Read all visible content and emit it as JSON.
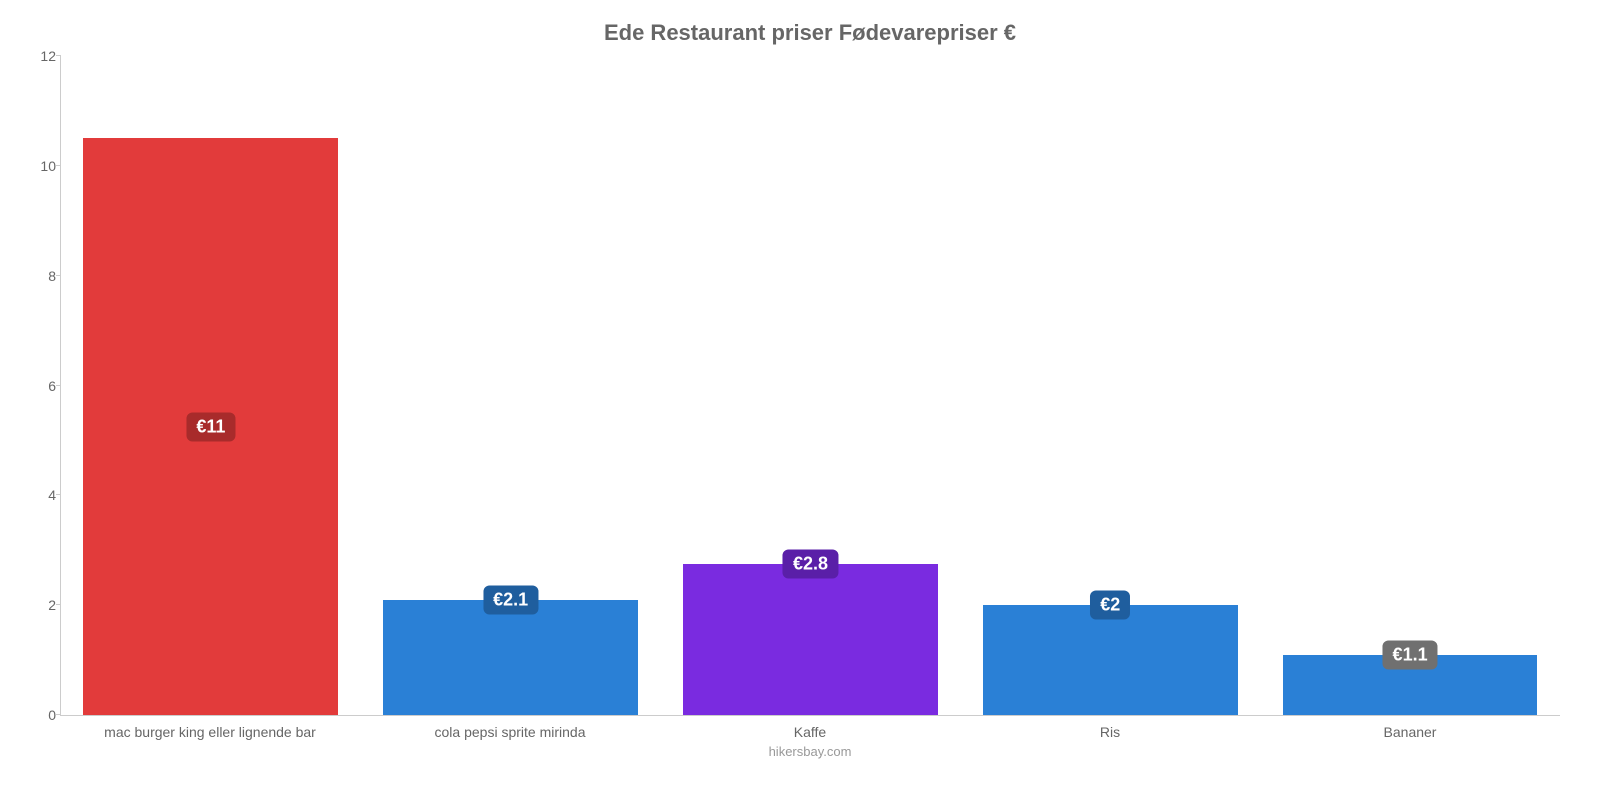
{
  "chart": {
    "type": "bar",
    "title": "Ede Restaurant priser Fødevarepriser €",
    "title_fontsize": 22,
    "title_color": "#666666",
    "background_color": "#ffffff",
    "axis_color": "#cccccc",
    "tick_label_color": "#666666",
    "tick_label_fontsize": 14,
    "xlabel_fontsize": 14,
    "bar_width_pct": 85,
    "ylim": [
      0,
      12
    ],
    "yticks": [
      0,
      2,
      4,
      6,
      8,
      10,
      12
    ],
    "attribution": "hikersbay.com",
    "attribution_color": "#999999",
    "attribution_fontsize": 13,
    "bar_label_fontsize": 18,
    "bar_label_text_color": "#ffffff",
    "categories": [
      "mac burger king eller lignende bar",
      "cola pepsi sprite mirinda",
      "Kaffe",
      "Ris",
      "Bananer"
    ],
    "values": [
      10.5,
      2.1,
      2.75,
      2.0,
      1.1
    ],
    "value_labels": [
      "€11",
      "€2.1",
      "€2.8",
      "€2",
      "€1.1"
    ],
    "bar_colors": [
      "#e23b3b",
      "#2a80d6",
      "#7a2be0",
      "#2a80d6",
      "#2a80d6"
    ],
    "bar_label_bg": [
      "#a82b2b",
      "#1f5e9e",
      "#5a1fa8",
      "#1f5e9e",
      "#707070"
    ],
    "label_center_in_bar": [
      true,
      false,
      false,
      false,
      false
    ]
  }
}
